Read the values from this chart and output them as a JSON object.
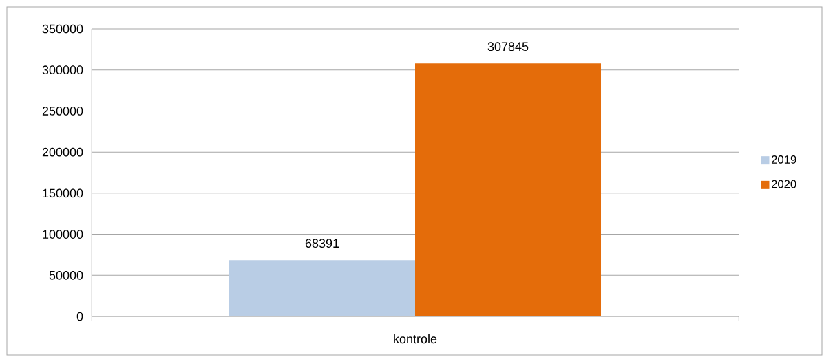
{
  "chart_data": {
    "type": "bar",
    "categories": [
      "kontrole"
    ],
    "series": [
      {
        "name": "2019",
        "color": "#b9cde5",
        "values": [
          68391
        ]
      },
      {
        "name": "2020",
        "color": "#e46c0a",
        "values": [
          307845
        ]
      }
    ],
    "ylim": [
      0,
      350000
    ],
    "yticks": [
      0,
      50000,
      100000,
      150000,
      200000,
      250000,
      300000,
      350000
    ],
    "grid": "y",
    "legend": "right",
    "data_labels": true
  }
}
